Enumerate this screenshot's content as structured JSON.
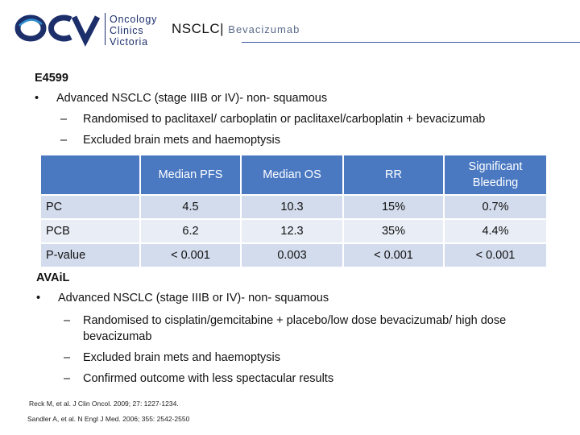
{
  "header": {
    "logo_line1": "Oncology",
    "logo_line2": "Clinics",
    "logo_line3": "Victoria",
    "title_main": "NSCLC|",
    "title_sub": "Bevacizumab"
  },
  "trial1": {
    "heading": "E4599",
    "bullet": "Advanced NSCLC (stage IIIB or IV)- non- squamous",
    "sub_items": [
      "Randomised to paclitaxel/ carboplatin or paclitaxel/carboplatin + bevacizumab",
      "Excluded brain mets and haemoptysis"
    ]
  },
  "table": {
    "headers": [
      "",
      "Median PFS",
      "Median OS",
      "RR",
      "Significant Bleeding"
    ],
    "rows": [
      [
        "PC",
        "4.5",
        "10.3",
        "15%",
        "0.7%"
      ],
      [
        "PCB",
        "6.2",
        "12.3",
        "35%",
        "4.4%"
      ],
      [
        "P-value",
        "< 0.001",
        "0.003",
        "< 0.001",
        "< 0.001"
      ]
    ]
  },
  "trial2": {
    "heading": "AVAiL",
    "bullet": "Advanced NSCLC (stage IIIB or IV)- non- squamous",
    "sub_items": [
      "Randomised to cisplatin/gemcitabine + placebo/low dose bevacizumab/ high dose bevacizumab",
      "Excluded brain mets and haemoptysis",
      "Confirmed outcome with less spectacular results"
    ]
  },
  "references": [
    "Reck M, et al. J Clin Oncol. 2009; 27: 1227-1234.",
    "Sandler A, et al. N Engl J Med. 2006; 355: 2542-2550"
  ],
  "colors": {
    "header_fill": "#4a79c2",
    "row_dark": "#d3dcec",
    "row_light": "#e8edf6",
    "logo_blue": "#1c2f6b"
  }
}
